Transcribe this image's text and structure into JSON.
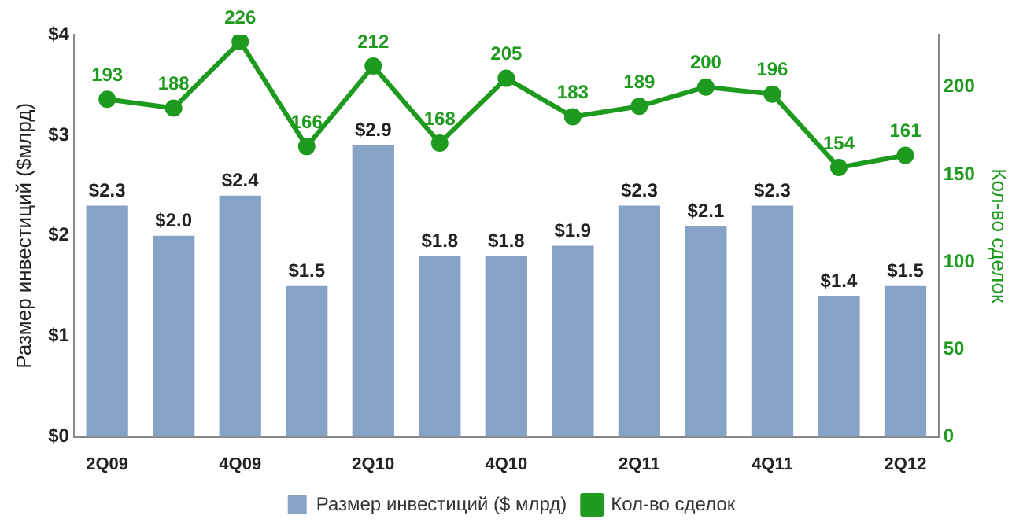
{
  "chart_data": {
    "type": "bar",
    "categories": [
      "2Q09",
      null,
      "4Q09",
      null,
      "2Q10",
      null,
      "4Q10",
      null,
      "2Q11",
      null,
      "4Q11",
      null,
      "2Q12"
    ],
    "series": [
      {
        "name": "Размер инвестиций ($ млрд)",
        "color": "#86a3c6",
        "values": [
          2.3,
          2.0,
          2.4,
          1.5,
          2.9,
          1.8,
          1.8,
          1.9,
          2.3,
          2.1,
          2.3,
          1.4,
          1.5
        ],
        "value_labels": [
          "$2.3",
          "$2.0",
          "$2.4",
          "$1.5",
          "$2.9",
          "$1.8",
          "$1.8",
          "$1.9",
          "$2.3",
          "$2.1",
          "$2.3",
          "$1.4",
          "$1.5"
        ]
      },
      {
        "name": "Кол-во сделок",
        "type": "line",
        "axis": "y2",
        "color": "#1e9a1e",
        "values": [
          193,
          188,
          226,
          166,
          212,
          168,
          205,
          183,
          189,
          200,
          196,
          154,
          161
        ],
        "value_labels": [
          "193",
          "188",
          "226",
          "166",
          "212",
          "168",
          "205",
          "183",
          "189",
          "200",
          "196",
          "154",
          "161"
        ]
      }
    ],
    "ylabel": "Размер инвестиций ($млрд)",
    "y2label": "Кол-во сделок",
    "ylim": [
      0,
      4
    ],
    "yticks": [
      {
        "value": 0,
        "label": "$0"
      },
      {
        "value": 1,
        "label": "$1"
      },
      {
        "value": 2,
        "label": "$2"
      },
      {
        "value": 3,
        "label": "$3"
      },
      {
        "value": 4,
        "label": "$4"
      }
    ],
    "y2lim": [
      0,
      230
    ],
    "y2ticks": [
      0,
      50,
      100,
      150,
      200
    ],
    "grid": false,
    "legend": "bottom",
    "marker": "circle",
    "line_style": "solid"
  }
}
